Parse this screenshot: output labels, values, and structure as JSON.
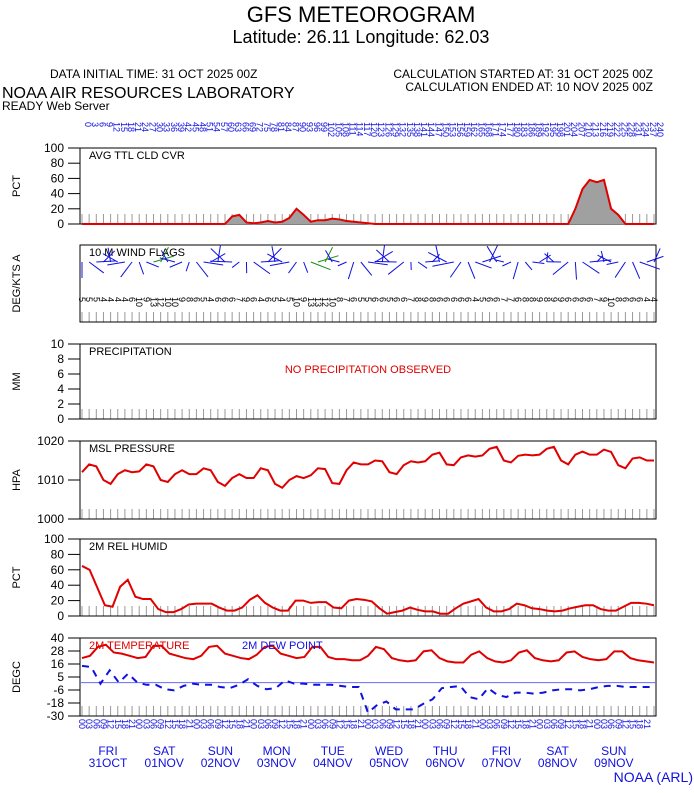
{
  "header": {
    "title": "GFS METEOROGRAM",
    "subtitle": "Latitude: 26.11 Longitude:  62.03",
    "init_time": "DATA INITIAL TIME: 31 OCT 2025 00Z",
    "calc_started": "CALCULATION STARTED AT: 31 OCT 2025 00Z",
    "calc_ended": "CALCULATION ENDED AT: 10 NOV 2025 00Z",
    "lab": "NOAA AIR RESOURCES LABORATORY",
    "server": "READY Web Server",
    "footer": "NOAA (ARL)"
  },
  "colors": {
    "red": "#e00000",
    "blue": "#1010e0",
    "green": "#1a8a1a",
    "fill": "#a0a0a0",
    "frame": "#000000",
    "zero_line": "#6a6aff"
  },
  "forecast_hours": [
    "0",
    "3",
    "6",
    "9",
    "12",
    "15",
    "18",
    "21",
    "24",
    "27",
    "30",
    "33",
    "36",
    "39",
    "42",
    "45",
    "48",
    "51",
    "54",
    "57",
    "60",
    "63",
    "66",
    "69",
    "72",
    "75",
    "78",
    "81",
    "84",
    "87",
    "90",
    "93",
    "96",
    "99",
    "102",
    "105",
    "108",
    "111",
    "114",
    "117",
    "120",
    "123",
    "126",
    "129",
    "132",
    "135",
    "138",
    "141",
    "144",
    "147",
    "150",
    "153",
    "156",
    "159",
    "162",
    "165",
    "168",
    "171",
    "174",
    "177",
    "180",
    "183",
    "186",
    "189",
    "192",
    "195",
    "198",
    "201",
    "204",
    "207",
    "210",
    "213",
    "216",
    "219",
    "222",
    "225",
    "228",
    "231",
    "234",
    "237",
    "240"
  ],
  "chart_data": [
    {
      "type": "area",
      "title": "AVG TTL CLD CVR",
      "ylabel": "PCT",
      "ylim": [
        0,
        100
      ],
      "yticks": [
        "100",
        "80",
        "60",
        "40",
        "20",
        "0"
      ],
      "x": [
        0,
        3,
        6,
        9,
        12,
        15,
        18,
        21,
        24,
        27,
        30,
        33,
        36,
        39,
        42,
        45,
        48,
        51,
        54,
        57,
        60,
        63,
        66,
        69,
        72,
        75,
        78,
        81,
        84,
        87,
        90,
        93,
        96,
        99,
        102,
        105,
        108,
        111,
        114,
        117,
        120,
        123,
        126,
        129,
        132,
        135,
        138,
        141,
        144,
        147,
        150,
        153,
        156,
        159,
        162,
        165,
        168,
        171,
        174,
        177,
        180,
        183,
        186,
        189,
        192,
        195,
        198,
        201,
        204,
        207,
        210,
        213,
        216,
        219,
        222,
        225,
        228,
        231,
        234,
        237,
        240
      ],
      "values": [
        0,
        0,
        0,
        0,
        0,
        0,
        0,
        0,
        0,
        0,
        0,
        0,
        0,
        0,
        0,
        0,
        0,
        0,
        0,
        0,
        0,
        10,
        12,
        2,
        1,
        2,
        4,
        2,
        3,
        8,
        20,
        12,
        3,
        5,
        5,
        7,
        6,
        4,
        3,
        2,
        1,
        0,
        0,
        0,
        0,
        0,
        0,
        0,
        0,
        0,
        0,
        0,
        0,
        0,
        0,
        0,
        0,
        0,
        0,
        0,
        0,
        0,
        0,
        0,
        0,
        0,
        0,
        0,
        0,
        20,
        46,
        58,
        55,
        58,
        20,
        12,
        0,
        0,
        0,
        0,
        0
      ]
    },
    {
      "type": "wind_barbs",
      "title": "10 M  WIND FLAGS",
      "ylabel": "DEG/KTS  A",
      "speed_labels": [
        "5",
        "5",
        "5",
        "4",
        "4",
        "4",
        "4",
        "6",
        "10",
        "9",
        "13",
        "12",
        "10",
        "10",
        "9",
        "8",
        "6",
        "5",
        "4",
        "6",
        "6",
        "6",
        "7",
        "9",
        "6",
        "4",
        "6",
        "5",
        "4",
        "5",
        "10",
        "9",
        "13",
        "13",
        "12",
        "10",
        "8",
        "7",
        "6",
        "5",
        "5",
        "6",
        "6",
        "5",
        "6",
        "6",
        "7",
        "8",
        "9",
        "8",
        "6",
        "6",
        "6",
        "6",
        "6",
        "4",
        "5",
        "6",
        "6",
        "7",
        "7",
        "6",
        "8",
        "8",
        "9",
        "8",
        "9",
        "9",
        "6",
        "6",
        "6",
        "6",
        "7",
        "9",
        "10",
        "8",
        "6",
        "6",
        "6",
        "4",
        "4"
      ]
    },
    {
      "type": "bar",
      "title": "PRECIPITATION",
      "ylabel": "MM",
      "ylim": [
        0,
        10
      ],
      "yticks": [
        "10",
        "8",
        "6",
        "4",
        "2",
        "0"
      ],
      "message": "NO PRECIPITATION OBSERVED"
    },
    {
      "type": "line",
      "title": "MSL PRESSURE",
      "ylabel": "HPA",
      "ylim": [
        1000,
        1020
      ],
      "yticks": [
        "1020",
        "1010",
        "1000"
      ],
      "values": [
        1012,
        1014,
        1013.5,
        1010,
        1009,
        1011.5,
        1012.5,
        1012,
        1012.2,
        1014,
        1013.5,
        1010,
        1009.5,
        1011.5,
        1012.5,
        1011.5,
        1011.5,
        1013,
        1012.5,
        1009.5,
        1008.5,
        1010.5,
        1011.5,
        1010.5,
        1010.5,
        1013,
        1012.5,
        1009,
        1008,
        1010,
        1011,
        1010.5,
        1011.2,
        1013,
        1012.8,
        1009.2,
        1009,
        1012.5,
        1014.5,
        1014,
        1014,
        1015,
        1014.8,
        1012,
        1011.5,
        1013.8,
        1014.8,
        1014.5,
        1014.8,
        1016.5,
        1017,
        1014,
        1013.8,
        1015.8,
        1016.3,
        1016,
        1016.3,
        1018,
        1018.5,
        1015,
        1014.5,
        1016.2,
        1016.5,
        1016.3,
        1016.5,
        1018,
        1018.5,
        1015,
        1014,
        1016.5,
        1017.3,
        1016.5,
        1016.5,
        1017.8,
        1017.2,
        1013.8,
        1013,
        1015.5,
        1015.8,
        1015,
        1015
      ]
    },
    {
      "type": "line",
      "title": "2M REL HUMID",
      "ylabel": "PCT",
      "ylim": [
        0,
        100
      ],
      "yticks": [
        "100",
        "80",
        "60",
        "40",
        "20",
        "0"
      ],
      "values": [
        65,
        60,
        37,
        14,
        12,
        38,
        47,
        25,
        22,
        22,
        9,
        5,
        5,
        9,
        15,
        16,
        16,
        16,
        11,
        7,
        7,
        11,
        21,
        27,
        17,
        11,
        7,
        7,
        20,
        20,
        17,
        18,
        18,
        11,
        10,
        20,
        22,
        21,
        19,
        10,
        3,
        5,
        7,
        11,
        8,
        6,
        6,
        3,
        3,
        10,
        16,
        19,
        22,
        11,
        6,
        6,
        9,
        16,
        14,
        10,
        9,
        7,
        6,
        7,
        10,
        12,
        14,
        14,
        9,
        7,
        7,
        12,
        17,
        17,
        16,
        14
      ]
    },
    {
      "type": "line",
      "title": "2M TEMPERATURE",
      "title2": "2M   DEW POINT",
      "ylabel": "DEGC",
      "ylim": [
        -30,
        40
      ],
      "yticks": [
        "40",
        "28",
        "16",
        "5",
        "-6",
        "-18",
        "-30"
      ],
      "series": [
        {
          "name": "2M TEMPERATURE",
          "values": [
            22,
            24,
            32,
            34,
            27,
            26,
            24,
            22,
            23,
            33,
            33,
            26,
            24,
            22,
            21,
            24,
            32,
            33,
            26,
            24,
            22,
            21,
            25,
            32,
            33,
            26,
            24,
            22,
            23,
            32,
            32,
            23,
            21,
            21,
            20,
            20,
            24,
            32,
            30,
            22,
            20,
            19,
            20,
            28,
            29,
            22,
            19,
            18,
            18,
            25,
            28,
            22,
            19,
            18,
            20,
            27,
            29,
            22,
            20,
            19,
            20,
            27,
            28,
            23,
            21,
            20,
            21,
            28,
            28,
            22,
            20,
            19,
            18
          ]
        },
        {
          "name": "2M DEW POINT",
          "values": [
            15,
            14,
            -1,
            11,
            0,
            8,
            0,
            -2,
            -2,
            -6,
            -7,
            -3,
            -1,
            -2,
            -2,
            -4,
            -5,
            -2,
            3,
            -3,
            -6,
            -5,
            2,
            -1,
            -1,
            -2,
            -2,
            -2,
            -3,
            -4,
            -4,
            -27,
            -20,
            -17,
            -24,
            -24,
            -24,
            -19,
            -15,
            -5,
            -4,
            -3,
            -13,
            -15,
            -5,
            -11,
            -13,
            -9,
            -9,
            -10,
            -9,
            -7,
            -6,
            -6,
            -7,
            -6,
            -4,
            -3,
            -3,
            -4,
            -4,
            -4,
            -4
          ]
        }
      ],
      "zero_line": 0
    }
  ],
  "days": [
    {
      "weekday": "FRI",
      "date": "31OCT"
    },
    {
      "weekday": "SAT",
      "date": "01NOV"
    },
    {
      "weekday": "SUN",
      "date": "02NOV"
    },
    {
      "weekday": "MON",
      "date": "03NOV"
    },
    {
      "weekday": "TUE",
      "date": "04NOV"
    },
    {
      "weekday": "WED",
      "date": "05NOV"
    },
    {
      "weekday": "THU",
      "date": "06NOV"
    },
    {
      "weekday": "FRI",
      "date": "07NOV"
    },
    {
      "weekday": "SAT",
      "date": "08NOV"
    },
    {
      "weekday": "SUN",
      "date": "09NOV"
    }
  ],
  "utc_labels": [
    "00",
    "03",
    "06",
    "09",
    "12",
    "15",
    "18",
    "21"
  ]
}
